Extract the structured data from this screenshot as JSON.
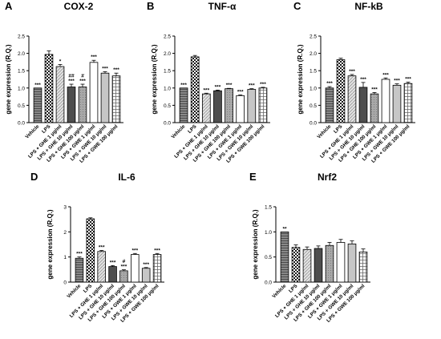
{
  "figure": {
    "categories": [
      "Vehicle",
      "LPS",
      "LPS + GHE 1 μg/ml",
      "LPS + GHE 10 μg/ml",
      "LPS + GHE 100 μg/ml",
      "LPS + GWE 1 μg/ml",
      "LPS + GWE 10 μg/ml",
      "LPS + GWE 100 μg/ml"
    ],
    "ylabel": "gene expression (R.Q.)"
  },
  "chart_data": [
    {
      "type": "bar",
      "panel": "A",
      "title": "COX-2",
      "ylabel": "gene expression (R.Q.)",
      "ylim": [
        0,
        2.5
      ],
      "yticks": [
        "0.0",
        "0.5",
        "1.0",
        "1.5",
        "2.0",
        "2.5"
      ],
      "values": [
        1.0,
        1.97,
        1.62,
        1.03,
        1.03,
        1.74,
        1.43,
        1.35
      ],
      "errors": [
        0.0,
        0.1,
        0.06,
        0.08,
        0.08,
        0.06,
        0.04,
        0.08
      ],
      "annotations": [
        "***",
        "",
        "*",
        "##\n***",
        "#\n***",
        "***",
        "***",
        "***"
      ]
    },
    {
      "type": "bar",
      "panel": "B",
      "title": "TNF-α",
      "ylabel": "gene expression (R.Q.)",
      "ylim": [
        0,
        2.5
      ],
      "yticks": [
        "0.0",
        "0.5",
        "1.0",
        "1.5",
        "2.0",
        "2.5"
      ],
      "values": [
        1.0,
        1.9,
        0.83,
        0.92,
        0.98,
        0.78,
        0.96,
        1.0
      ],
      "errors": [
        0.0,
        0.04,
        0.02,
        0.02,
        0.01,
        0.02,
        0.02,
        0.02
      ],
      "annotations": [
        "***",
        "",
        "***",
        "***",
        "***",
        "***",
        "***",
        "***"
      ]
    },
    {
      "type": "bar",
      "panel": "C",
      "title": "NF-kB",
      "ylabel": "gene expression (R.Q.)",
      "ylim": [
        0,
        2.5
      ],
      "yticks": [
        "0.0",
        "0.5",
        "1.0",
        "1.5",
        "2.0",
        "2.5"
      ],
      "values": [
        1.0,
        1.82,
        1.35,
        1.02,
        0.83,
        1.25,
        1.08,
        1.13
      ],
      "errors": [
        0.04,
        0.04,
        0.04,
        0.14,
        0.04,
        0.04,
        0.04,
        0.04
      ],
      "annotations": [
        "***",
        "",
        "***",
        "***",
        "***",
        "***",
        "***",
        "***"
      ]
    },
    {
      "type": "bar",
      "panel": "D",
      "title": "IL-6",
      "ylabel": "gene expression (R.Q.)",
      "ylim": [
        0,
        3
      ],
      "yticks": [
        "0",
        "1",
        "2",
        "3"
      ],
      "values": [
        0.95,
        2.52,
        1.22,
        0.62,
        0.45,
        1.1,
        0.55,
        1.1
      ],
      "errors": [
        0.05,
        0.04,
        0.04,
        0.04,
        0.04,
        0.04,
        0.03,
        0.04
      ],
      "annotations": [
        "***",
        "",
        "***",
        "***",
        "#\n***",
        "***",
        "***",
        "***"
      ]
    },
    {
      "type": "bar",
      "panel": "E",
      "title": "Nrf2",
      "ylabel": "gene expression (R.Q.)",
      "ylim": [
        0,
        1.5
      ],
      "yticks": [
        "0.0",
        "0.5",
        "1.0",
        "1.5"
      ],
      "values": [
        1.0,
        0.69,
        0.65,
        0.67,
        0.73,
        0.79,
        0.76,
        0.6
      ],
      "errors": [
        0.0,
        0.05,
        0.05,
        0.05,
        0.06,
        0.06,
        0.06,
        0.06
      ],
      "annotations": [
        "**",
        "",
        "",
        "",
        "",
        "",
        "",
        ""
      ]
    }
  ]
}
